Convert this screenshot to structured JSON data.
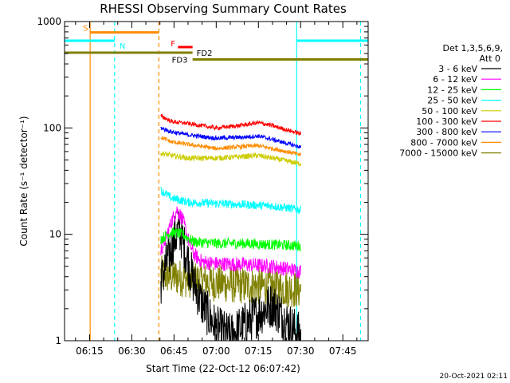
{
  "chart_data": {
    "type": "line",
    "title": "RHESSI Observing Summary Count Rates",
    "xlabel": "Start Time (22-Oct-12 06:07:42)",
    "ylabel": "Count Rate (s⁻¹ detector⁻¹)",
    "y_scale": "log",
    "ylim": [
      1,
      1000
    ],
    "xlim_minutes": [
      6.1,
      114.0
    ],
    "x_ticks": [
      {
        "label": "06:15",
        "min": 15
      },
      {
        "label": "06:30",
        "min": 30
      },
      {
        "label": "06:45",
        "min": 45
      },
      {
        "label": "07:00",
        "min": 60
      },
      {
        "label": "07:15",
        "min": 75
      },
      {
        "label": "07:30",
        "min": 90
      },
      {
        "label": "07:45",
        "min": 105
      }
    ],
    "y_ticks": [
      {
        "label": "1",
        "value": 1
      },
      {
        "label": "10",
        "value": 10
      },
      {
        "label": "100",
        "value": 100
      },
      {
        "label": "1000",
        "value": 1000
      }
    ],
    "legend_header": [
      "Det 1,3,5,6,9,",
      "Att 0"
    ],
    "legend_placement": "right",
    "series": [
      {
        "name": "3 - 6 keV",
        "color": "#000000",
        "t0": 40.3,
        "t1": 90.2,
        "points": [
          [
            40.3,
            3.5
          ],
          [
            42,
            5
          ],
          [
            45,
            9
          ],
          [
            47,
            11
          ],
          [
            49,
            7
          ],
          [
            52,
            3.5
          ],
          [
            55,
            2.2
          ],
          [
            60,
            1.3
          ],
          [
            65,
            1.1
          ],
          [
            70,
            1.4
          ],
          [
            75,
            1.8
          ],
          [
            80,
            2.2
          ],
          [
            85,
            1.5
          ],
          [
            90,
            1.1
          ]
        ],
        "noise": 0.22
      },
      {
        "name": "6 - 12 keV",
        "color": "#ff00ff",
        "t0": 40.3,
        "t1": 90.2,
        "points": [
          [
            40.3,
            7
          ],
          [
            42,
            9
          ],
          [
            44,
            13
          ],
          [
            46,
            17
          ],
          [
            48,
            14
          ],
          [
            50,
            9
          ],
          [
            52,
            6.5
          ],
          [
            55,
            5.5
          ],
          [
            60,
            5.3
          ],
          [
            70,
            5.2
          ],
          [
            80,
            5
          ],
          [
            90,
            4.5
          ]
        ],
        "noise": 0.07
      },
      {
        "name": "12 - 25 keV",
        "color": "#00ff00",
        "t0": 40.3,
        "t1": 90.2,
        "points": [
          [
            40.3,
            9
          ],
          [
            44,
            10.5
          ],
          [
            48,
            10
          ],
          [
            52,
            8.5
          ],
          [
            60,
            8.2
          ],
          [
            70,
            8.2
          ],
          [
            80,
            8
          ],
          [
            90,
            7.8
          ]
        ],
        "noise": 0.05
      },
      {
        "name": "25 - 50 keV",
        "color": "#00ffff",
        "t0": 40.3,
        "t1": 90.2,
        "points": [
          [
            40.3,
            26
          ],
          [
            44,
            22
          ],
          [
            50,
            20
          ],
          [
            60,
            19.5
          ],
          [
            70,
            19
          ],
          [
            80,
            18.5
          ],
          [
            90,
            17
          ]
        ],
        "noise": 0.04
      },
      {
        "name": "50 - 100 keV",
        "color": "#cccc00",
        "t0": 40.3,
        "t1": 90.2,
        "points": [
          [
            40.3,
            58
          ],
          [
            44,
            55
          ],
          [
            50,
            52
          ],
          [
            60,
            52
          ],
          [
            70,
            54
          ],
          [
            75,
            55
          ],
          [
            80,
            52
          ],
          [
            90,
            46
          ]
        ],
        "noise": 0.025
      },
      {
        "name": "100 - 300 keV",
        "color": "#ff0000",
        "t0": 40.3,
        "t1": 90.2,
        "points": [
          [
            40.3,
            130
          ],
          [
            44,
            115
          ],
          [
            50,
            110
          ],
          [
            60,
            100
          ],
          [
            68,
            105
          ],
          [
            75,
            112
          ],
          [
            80,
            105
          ],
          [
            90,
            88
          ]
        ],
        "noise": 0.02
      },
      {
        "name": "300 - 800 keV",
        "color": "#0000ff",
        "t0": 40.3,
        "t1": 90.2,
        "points": [
          [
            40.3,
            100
          ],
          [
            44,
            92
          ],
          [
            50,
            86
          ],
          [
            60,
            80
          ],
          [
            70,
            82
          ],
          [
            75,
            84
          ],
          [
            80,
            78
          ],
          [
            90,
            66
          ]
        ],
        "noise": 0.02
      },
      {
        "name": "800 - 7000 keV",
        "color": "#ff8c00",
        "t0": 40.3,
        "t1": 90.2,
        "points": [
          [
            40.3,
            82
          ],
          [
            44,
            74
          ],
          [
            50,
            70
          ],
          [
            60,
            64
          ],
          [
            70,
            67
          ],
          [
            75,
            68
          ],
          [
            80,
            64
          ],
          [
            90,
            56
          ]
        ],
        "noise": 0.02
      },
      {
        "name": "7000 - 15000 keV",
        "color": "#808000",
        "t0": 40.3,
        "t1": 90.2,
        "points": [
          [
            40.3,
            4.2
          ],
          [
            50,
            3.8
          ],
          [
            60,
            3.5
          ],
          [
            70,
            3.3
          ],
          [
            80,
            3.2
          ],
          [
            90,
            3
          ]
        ],
        "noise": 0.18
      }
    ],
    "flag_bars": [
      {
        "label": "S",
        "color": "#ff8c00",
        "t0": 15.2,
        "t1": 39.6,
        "value": 790
      },
      {
        "label": "N",
        "color": "#00ffff",
        "t0": 6.1,
        "t1": 23.9,
        "value": 660
      },
      {
        "label": "N",
        "color": "#00ffff",
        "t0": 88.6,
        "t1": 114.0,
        "value": 660
      },
      {
        "label": "F",
        "color": "#ff0000",
        "t0": 46.4,
        "t1": 51.6,
        "value": 575
      },
      {
        "label": "FD2",
        "color": "#808000",
        "t0": 6.1,
        "t1": 51.6,
        "value": 510
      },
      {
        "label": "FD3",
        "color": "#808000",
        "t0": 51.6,
        "t1": 114.0,
        "value": 440
      }
    ],
    "vertical_markers": [
      {
        "min": 15.2,
        "color": "#ff8c00",
        "style": "solid"
      },
      {
        "min": 23.9,
        "color": "#00ffff",
        "style": "dashed"
      },
      {
        "min": 39.6,
        "color": "#ff8c00",
        "style": "dashed"
      },
      {
        "min": 88.6,
        "color": "#00ffff",
        "style": "solid"
      },
      {
        "min": 111.3,
        "color": "#00ffff",
        "style": "dashed"
      }
    ],
    "timestamp": "20-Oct-2021 02:11"
  }
}
